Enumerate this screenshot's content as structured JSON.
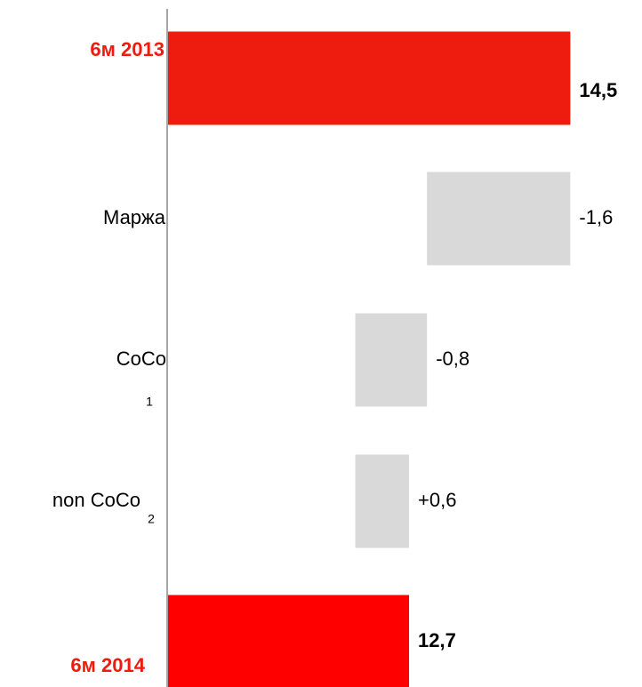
{
  "chart_data": {
    "type": "waterfall",
    "categories": [
      "6м 2013",
      "Маржа",
      "CoCo",
      "non CoCo",
      "6м 2014"
    ],
    "category_notes": [
      null,
      null,
      "1",
      "2",
      null
    ],
    "values": [
      14.5,
      -1.6,
      -0.8,
      0.6,
      12.7
    ],
    "value_labels": [
      "14,5",
      "-1,6",
      "-0,8",
      "+0,6",
      "12,7"
    ],
    "totals": [
      true,
      false,
      false,
      false,
      true
    ],
    "colors": [
      "#ee1c0e",
      "#d9d9d9",
      "#d9d9d9",
      "#d9d9d9",
      "#ff0000"
    ],
    "total_label_color": "#ee1c0e",
    "xlim": [
      10,
      15.3
    ]
  }
}
